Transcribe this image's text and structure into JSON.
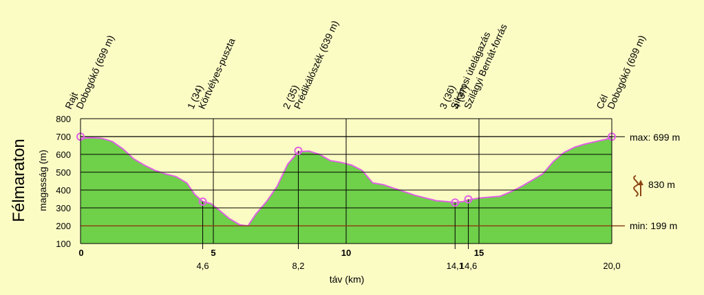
{
  "chart_data": {
    "type": "area",
    "title": "Félmaraton",
    "xlabel": "táv (km)",
    "ylabel": "magasság (m)",
    "xlim": [
      0,
      20
    ],
    "ylim": [
      100,
      800
    ],
    "y_ticks": [
      100,
      200,
      300,
      400,
      500,
      600,
      700,
      800
    ],
    "x_major_ticks": [
      {
        "x": 0,
        "label": "0"
      },
      {
        "x": 5,
        "label": "5"
      },
      {
        "x": 10,
        "label": "10"
      },
      {
        "x": 15,
        "label": "15"
      }
    ],
    "grid": true,
    "colors": {
      "fill": "#6fd04a",
      "line": "#e060e6",
      "marker": "#e060e6",
      "minmax": "#8b4513",
      "background": "#fbfbc4"
    },
    "profile": {
      "x": [
        0,
        0.4,
        0.8,
        1.2,
        1.6,
        2.0,
        2.4,
        2.8,
        3.2,
        3.6,
        4.0,
        4.3,
        4.6,
        4.9,
        5.2,
        5.6,
        6.0,
        6.3,
        6.6,
        7.0,
        7.4,
        7.8,
        8.2,
        8.6,
        9.0,
        9.4,
        9.8,
        10.2,
        10.6,
        11.0,
        11.4,
        11.8,
        12.2,
        12.6,
        13.0,
        13.4,
        13.8,
        14.1,
        14.4,
        14.6,
        15.0,
        15.4,
        15.8,
        16.2,
        16.6,
        17.0,
        17.4,
        17.8,
        18.2,
        18.6,
        19.0,
        19.4,
        19.8,
        20.0
      ],
      "y": [
        690,
        693,
        690,
        672,
        630,
        575,
        540,
        510,
        490,
        475,
        440,
        375,
        335,
        325,
        290,
        240,
        205,
        199,
        265,
        335,
        420,
        545,
        615,
        618,
        600,
        565,
        555,
        540,
        510,
        440,
        430,
        410,
        390,
        370,
        355,
        340,
        335,
        330,
        335,
        345,
        355,
        360,
        365,
        390,
        420,
        455,
        490,
        560,
        610,
        640,
        658,
        672,
        685,
        699
      ]
    },
    "waypoints": [
      {
        "x": 0,
        "y": 699,
        "dist_label": "",
        "name_line1": "Rajt",
        "name_line2": "Dobogókő (699 m)"
      },
      {
        "x": 4.6,
        "y": 335,
        "dist_label": "4,6",
        "name_line1": "1 (34)",
        "name_line2": "Körtvélyes-puszta"
      },
      {
        "x": 8.2,
        "y": 620,
        "dist_label": "8,2",
        "name_line1": "2 (35)",
        "name_line2": "Prédikálószék (639 m)"
      },
      {
        "x": 14.1,
        "y": 330,
        "dist_label": "14,1",
        "name_line1": "3 (36)",
        "name_line2": "Sikárosi útelágazás"
      },
      {
        "x": 14.6,
        "y": 348,
        "dist_label": "14,6",
        "name_line1": "4 (37)",
        "name_line2": "Szilágyi Bernát-forrás"
      },
      {
        "x": 20.0,
        "y": 699,
        "dist_label": "20,0",
        "name_line1": "Cél",
        "name_line2": "Dobogókő (699 m)"
      }
    ],
    "max": {
      "value": 699,
      "label": "max: 699 m"
    },
    "min": {
      "value": 199,
      "label": "min: 199 m"
    },
    "climb": {
      "value": 830,
      "label": "830 m"
    }
  }
}
